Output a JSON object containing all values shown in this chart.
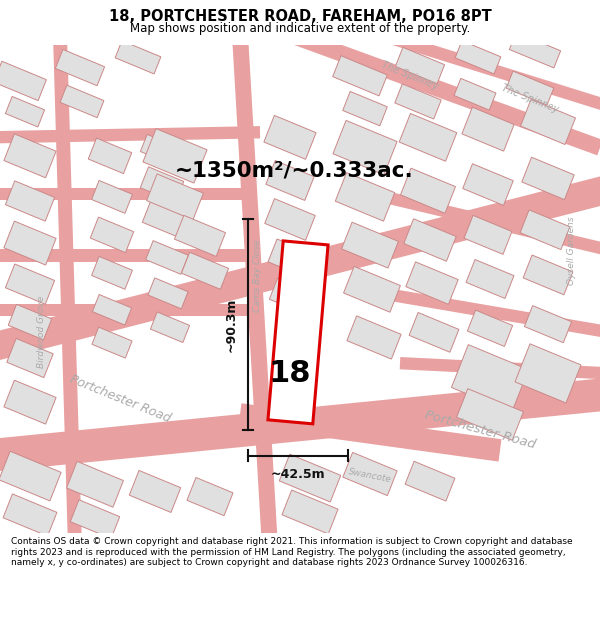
{
  "title": "18, PORTCHESTER ROAD, FAREHAM, PO16 8PT",
  "subtitle": "Map shows position and indicative extent of the property.",
  "area_text": "~1350m²/~0.333ac.",
  "label_18": "18",
  "dim_width": "~42.5m",
  "dim_height": "~90.3m",
  "footer": "Contains OS data © Crown copyright and database right 2021. This information is subject to Crown copyright and database rights 2023 and is reproduced with the permission of HM Land Registry. The polygons (including the associated geometry, namely x, y co-ordinates) are subject to Crown copyright and database rights 2023 Ordnance Survey 100026316.",
  "bg_color": "#f7f5f5",
  "road_color": "#e8a0a0",
  "building_fill": "#e0e0e0",
  "building_edge": "#cc8888",
  "highlight_fill": "#ffffff",
  "highlight_edge": "#dd0000",
  "title_color": "#000000",
  "footer_color": "#000000",
  "road_label_color": "#aaaaaa",
  "dim_color": "#111111"
}
